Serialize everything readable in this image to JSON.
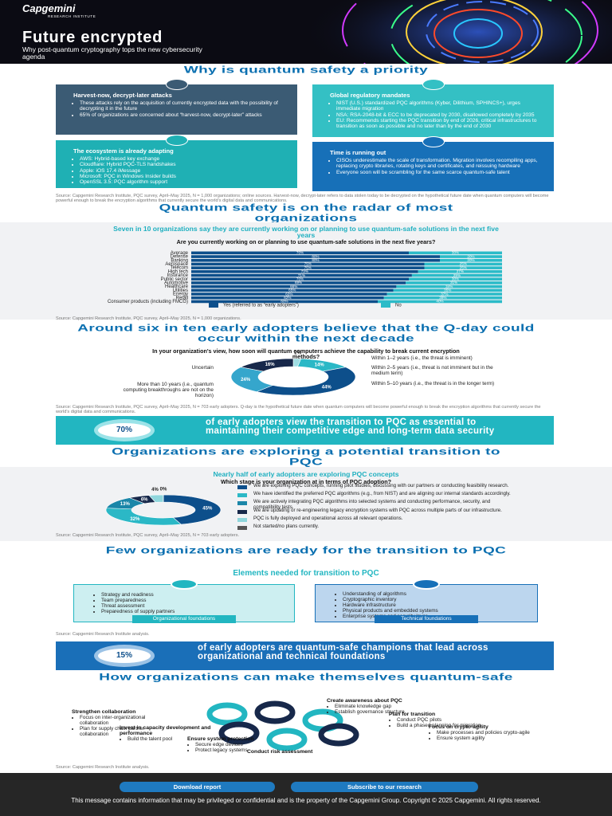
{
  "header": {
    "logo": "Capgemini",
    "logo_sub": "RESEARCH INSTITUTE",
    "title": "Future encrypted",
    "subtitle": "Why post-quantum cryptography tops the new cybersecurity agenda"
  },
  "priority": {
    "heading": "Why is quantum safety a priority",
    "boxes": [
      {
        "title": "Harvest-now, decrypt-later attacks",
        "bullets": [
          "These attacks rely on the acquisition of currently encrypted data with the possibility of decrypting it in the future",
          "65% of organizations are concerned about “harvest-now, decrypt-later” attacks"
        ]
      },
      {
        "title": "Global regulatory mandates",
        "bullets": [
          "NIST (U.S.) standardized PQC algorithms (Kyber, Dilithium, SPHINCS+), urges immediate migration",
          "NSA: RSA-2048-bit & ECC to be deprecated by 2030, disallowed completely by 2035",
          "EU: Recommends starting the PQC transition by end of 2026, critical infrastructures to transition as soon as possible and no later than by the end of 2030"
        ]
      },
      {
        "title": "The ecosystem is already adapting",
        "bullets": [
          "AWS: Hybrid-based key exchange",
          "Cloudflare: Hybrid PQC-TLS handshakes",
          "Apple: iOS 17.4 iMessage",
          "Microsoft: PQC in Windows Insider builds",
          "OpenSSL 3.5: PQC algorithm support"
        ]
      },
      {
        "title": "Time is running out",
        "bullets": [
          "CISOs underestimate the scale of transformation. Migration involves recompiling apps, replacing crypto libraries, rotating keys and certificates, and reissuing hardware",
          "Everyone soon will be scrambling for the same scarce quantum-safe talent"
        ]
      }
    ],
    "source": "Source: Capgemini Research Institute, PQC survey, April–May 2025, N = 1,000 organizations; online sources. Harvest-now, decrypt-later refers to data stolen today to be decrypted on the hypothetical future date when quantum computers will become powerful enough to break the encryption algorithms that currently secure the world's digital data and communications."
  },
  "radar": {
    "heading": "Quantum safety is on the radar of most organizations",
    "source": "Source: Capgemini Research Institute, PQC survey, April–May 2025, N = 1,000 organizations."
  },
  "qday": {
    "heading": "Around six in ten early adopters believe that the Q-day could occur within the next decade",
    "source": "Source: Capgemini Research Institute, PQC survey, April–May 2025, N = 703 early adopters. Q-day is the hypothetical future date when quantum computers will become powerful enough to break the encryption algorithms that currently secure the world's digital data and communications.",
    "stat": {
      "value": "70%",
      "text": "of early adopters view the transition to PQC as essential to maintaining their competitive edge and long-term data security"
    }
  },
  "exploring": {
    "heading": "Organizations are exploring a potential transition to PQC",
    "source": "Source: Capgemini Research Institute, PQC survey, April–May 2025, N = 703 early adopters."
  },
  "ready": {
    "heading": "Few organizations are ready for the transition to PQC",
    "subheading": "Elements needed for transition to PQC",
    "boxes": [
      {
        "items": [
          "Strategy and readiness",
          "Team preparedness",
          "Threat assessment",
          "Preparedness of supply partners"
        ],
        "label": "Organizational foundations"
      },
      {
        "items": [
          "Understanding of algorithms",
          "Cryptographic inventory",
          "Hardware infrastructure",
          "Physical products and embedded systems",
          "Enterprise systems and security layer"
        ],
        "label": "Technical foundations"
      }
    ],
    "source": "Source: Capgemini Research Institute analysis.",
    "stat": {
      "value": "15%",
      "text": "of early adopters are quantum-safe champions that lead across organizational and technical foundations"
    }
  },
  "how": {
    "heading": "How organizations can make themselves quantum-safe",
    "steps": [
      {
        "title": "Create awareness about PQC",
        "items": [
          "Eliminate knowledge gap",
          "Establish governance structure"
        ]
      },
      {
        "title": "Plan for transition",
        "items": [
          "Conduct PQC pilots",
          "Build a phased planning for migration"
        ]
      },
      {
        "title": "Focus on crypto-agility",
        "items": [
          "Make processes and policies crypto-agile",
          "Ensure system agility"
        ]
      },
      {
        "title": "Conduct risk assessment",
        "items": []
      },
      {
        "title": "Ensure system protection",
        "items": [
          "Secure edge devices",
          "Protect legacy systems"
        ]
      },
      {
        "title": "Invest in capacity development and performance",
        "items": [
          "Build the talent pool"
        ]
      },
      {
        "title": "Strengthen collaboration",
        "items": [
          "Focus on inter-organizational collaboration",
          "Plan for supply chain partner collaboration"
        ]
      }
    ],
    "source": "Source: Capgemini Research Institute analysis."
  },
  "footer": {
    "buttons": [
      "Download report",
      "Subscribe to our research"
    ],
    "disclaimer": "This message contains information that may be privileged or confidential and is the property of the Capgemini Group. Copyright © 2025 Capgemini. All rights reserved."
  },
  "chart_data": [
    {
      "type": "bar",
      "orientation": "horizontal",
      "stacked": true,
      "title": "Seven in 10 organizations say they are currently working on or planning to use quantum-safe solutions in the next five years",
      "subtitle": "Are you currently working on or planning to use quantum-safe solutions in the next five years?",
      "categories": [
        "Average",
        "Defense",
        "Banking",
        "Aerospace",
        "Telecom",
        "High tech",
        "Insurance",
        "Public sector",
        "Automotive",
        "Healthcare",
        "Utilities",
        "Energy",
        "Retail",
        "Consumer products (including FMCG)"
      ],
      "series": [
        {
          "name": "Yes (referred to as “early adopters”)",
          "color": "#0d4f8b",
          "values": [
            70,
            80,
            80,
            75,
            75,
            73,
            71,
            70,
            69,
            66,
            65,
            63,
            62,
            60
          ],
          "value_labels": [
            "70%",
            "80%",
            "80%",
            "75%",
            "75%",
            "73%",
            "71%",
            "70%",
            "69%",
            "66%",
            "65%",
            "63%",
            "62%",
            "60%"
          ]
        },
        {
          "name": "No",
          "color": "#2bbbc8",
          "values": [
            30,
            20,
            20,
            25,
            25,
            27,
            29,
            30,
            31,
            34,
            35,
            37,
            38,
            40
          ],
          "value_labels": [
            "30%",
            "20%",
            "20%",
            "25%",
            "25%",
            "27%",
            "29%",
            "30%",
            "31%",
            "34%",
            "35%",
            "37%",
            "38%",
            "40%"
          ]
        }
      ],
      "xlim": [
        0,
        100
      ]
    },
    {
      "type": "donut",
      "title": "In your organization's view, how soon will quantum computers achieve the capability to break current encryption methods?",
      "categories": [
        "Within 1–2 years (i.e., the threat is imminent)",
        "Within 2–5 years (i.e., threat is not imminent but in the medium term)",
        "Within 5–10 years (i.e., the threat is in the longer term)",
        "More than 10 years (i.e., quantum computing breakthroughs are not on the horizon)",
        "Uncertain"
      ],
      "values": [
        2,
        14,
        44,
        24,
        16
      ],
      "value_labels": [
        "2%",
        "14%",
        "44%",
        "24%",
        "16%"
      ],
      "colors": [
        "#9fdde3",
        "#2bb8c6",
        "#0d4f8b",
        "#35a6cc",
        "#17284a"
      ]
    },
    {
      "type": "donut",
      "title": "Nearly half of early adopters are exploring PQC concepts",
      "subtitle": "Which stage is your organization at in terms of PQC adoption?",
      "categories": [
        "We are exploring PQC concepts, running pilot studies, discussing with our partners or conducting feasibility research.",
        "We have identified the preferred PQC algorithms (e.g., from NIST) and are aligning our internal standards accordingly.",
        "We are actively integrating PQC algorithms into selected systems and conducting performance, security, and compatibility tests.",
        "We are updating or re-engineering legacy encryption systems with PQC across multiple parts of our infrastructure.",
        "PQC is fully deployed and operational across all relevant operations.",
        "Not started/no plans currently."
      ],
      "values": [
        45,
        32,
        13,
        6,
        4,
        0
      ],
      "value_labels": [
        "45%",
        "32%",
        "13%",
        "6%",
        "4%",
        "0%"
      ],
      "colors": [
        "#0d4f8b",
        "#2bb8c6",
        "#1a86a8",
        "#17284a",
        "#8fd6dc",
        "#555555"
      ]
    }
  ]
}
